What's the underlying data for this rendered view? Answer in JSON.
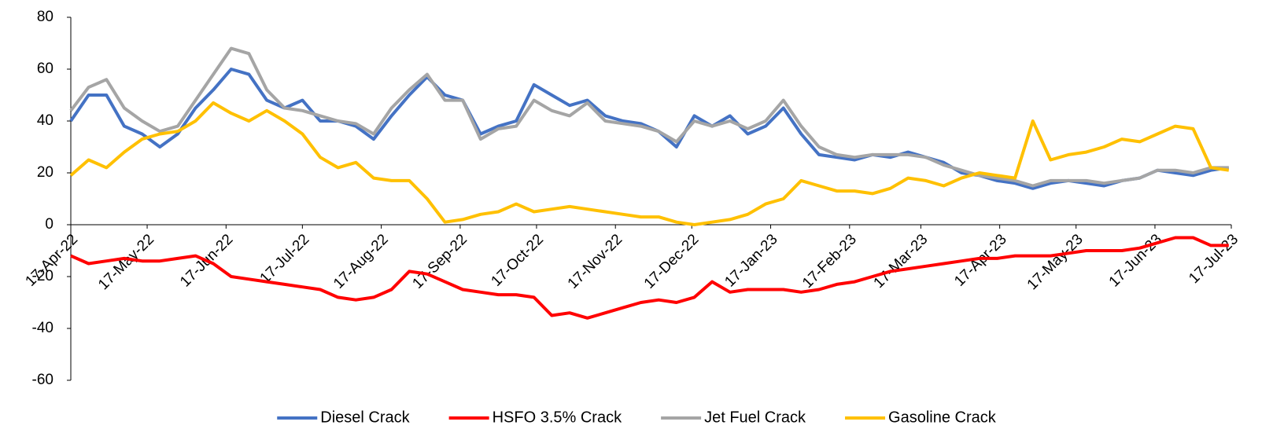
{
  "chart_data": {
    "type": "line",
    "x": [
      "2022-04-17",
      "2022-04-24",
      "2022-05-01",
      "2022-05-08",
      "2022-05-15",
      "2022-05-22",
      "2022-05-29",
      "2022-06-05",
      "2022-06-12",
      "2022-06-19",
      "2022-06-26",
      "2022-07-03",
      "2022-07-10",
      "2022-07-17",
      "2022-07-24",
      "2022-07-31",
      "2022-08-07",
      "2022-08-14",
      "2022-08-21",
      "2022-08-28",
      "2022-09-04",
      "2022-09-11",
      "2022-09-18",
      "2022-09-25",
      "2022-10-02",
      "2022-10-09",
      "2022-10-16",
      "2022-10-23",
      "2022-10-30",
      "2022-11-06",
      "2022-11-13",
      "2022-11-20",
      "2022-11-27",
      "2022-12-04",
      "2022-12-11",
      "2022-12-18",
      "2022-12-25",
      "2023-01-01",
      "2023-01-08",
      "2023-01-15",
      "2023-01-22",
      "2023-01-29",
      "2023-02-05",
      "2023-02-12",
      "2023-02-19",
      "2023-02-26",
      "2023-03-05",
      "2023-03-12",
      "2023-03-19",
      "2023-03-26",
      "2023-04-02",
      "2023-04-09",
      "2023-04-16",
      "2023-04-23",
      "2023-04-30",
      "2023-05-07",
      "2023-05-14",
      "2023-05-21",
      "2023-05-28",
      "2023-06-04",
      "2023-06-11",
      "2023-06-18",
      "2023-06-25",
      "2023-07-02",
      "2023-07-09",
      "2023-07-16"
    ],
    "series": [
      {
        "name": "Diesel Crack",
        "color": "#4472c4",
        "values": [
          40,
          50,
          50,
          38,
          35,
          30,
          35,
          45,
          52,
          60,
          58,
          48,
          45,
          48,
          40,
          40,
          38,
          33,
          42,
          50,
          57,
          50,
          48,
          35,
          38,
          40,
          54,
          50,
          46,
          48,
          42,
          40,
          39,
          36,
          30,
          42,
          38,
          42,
          35,
          38,
          45,
          35,
          27,
          26,
          25,
          27,
          26,
          28,
          26,
          24,
          20,
          19,
          17,
          16,
          14,
          16,
          17,
          16,
          15,
          17,
          18,
          21,
          20,
          19,
          21,
          22
        ]
      },
      {
        "name": "HSFO 3.5% Crack",
        "color": "#ff0000",
        "values": [
          -12,
          -15,
          -14,
          -13,
          -14,
          -14,
          -13,
          -12,
          -15,
          -20,
          -21,
          -22,
          -23,
          -24,
          -25,
          -28,
          -29,
          -28,
          -25,
          -18,
          -19,
          -22,
          -25,
          -26,
          -27,
          -27,
          -28,
          -35,
          -34,
          -36,
          -34,
          -32,
          -30,
          -29,
          -30,
          -28,
          -22,
          -26,
          -25,
          -25,
          -25,
          -26,
          -25,
          -23,
          -22,
          -20,
          -18,
          -17,
          -16,
          -15,
          -14,
          -13,
          -13,
          -12,
          -12,
          -12,
          -11,
          -10,
          -10,
          -10,
          -9,
          -7,
          -5,
          -5,
          -8,
          -8
        ]
      },
      {
        "name": "Jet Fuel Crack",
        "color": "#a5a5a5",
        "values": [
          44,
          53,
          56,
          45,
          40,
          36,
          38,
          48,
          58,
          68,
          66,
          52,
          45,
          44,
          42,
          40,
          39,
          35,
          45,
          52,
          58,
          48,
          48,
          33,
          37,
          38,
          48,
          44,
          42,
          47,
          40,
          39,
          38,
          36,
          32,
          40,
          38,
          40,
          37,
          40,
          48,
          38,
          30,
          27,
          26,
          27,
          27,
          27,
          26,
          23,
          21,
          19,
          18,
          17,
          15,
          17,
          17,
          17,
          16,
          17,
          18,
          21,
          21,
          20,
          22,
          22
        ]
      },
      {
        "name": "Gasoline Crack",
        "color": "#ffc000",
        "values": [
          19,
          25,
          22,
          28,
          33,
          35,
          36,
          40,
          47,
          43,
          40,
          44,
          40,
          35,
          26,
          22,
          24,
          18,
          17,
          17,
          10,
          1,
          2,
          4,
          5,
          8,
          5,
          6,
          7,
          6,
          5,
          4,
          3,
          3,
          1,
          0,
          1,
          2,
          4,
          8,
          10,
          17,
          15,
          13,
          13,
          12,
          14,
          18,
          17,
          15,
          18,
          20,
          19,
          18,
          40,
          25,
          27,
          28,
          30,
          33,
          32,
          35,
          38,
          37,
          22,
          21
        ]
      }
    ],
    "xlim": [
      "2022-04-17",
      "2023-07-17"
    ],
    "xticks": [
      {
        "value": "2022-04-17",
        "label": "17-Apr-22"
      },
      {
        "value": "2022-05-17",
        "label": "17-May-22"
      },
      {
        "value": "2022-06-17",
        "label": "17-Jun-22"
      },
      {
        "value": "2022-07-17",
        "label": "17-Jul-22"
      },
      {
        "value": "2022-08-17",
        "label": "17-Aug-22"
      },
      {
        "value": "2022-09-17",
        "label": "17-Sep-22"
      },
      {
        "value": "2022-10-17",
        "label": "17-Oct-22"
      },
      {
        "value": "2022-11-17",
        "label": "17-Nov-22"
      },
      {
        "value": "2022-12-17",
        "label": "17-Dec-22"
      },
      {
        "value": "2023-01-17",
        "label": "17-Jan-23"
      },
      {
        "value": "2023-02-17",
        "label": "17-Feb-23"
      },
      {
        "value": "2023-03-17",
        "label": "17-Mar-23"
      },
      {
        "value": "2023-04-17",
        "label": "17-Apr-23"
      },
      {
        "value": "2023-05-17",
        "label": "17-May-23"
      },
      {
        "value": "2023-06-17",
        "label": "17-Jun-23"
      },
      {
        "value": "2023-07-17",
        "label": "17-Jul-23"
      }
    ],
    "ylim": [
      -60,
      80
    ],
    "yticks": [
      -60,
      -40,
      -20,
      0,
      20,
      40,
      60,
      80
    ],
    "legend": "bottom"
  }
}
